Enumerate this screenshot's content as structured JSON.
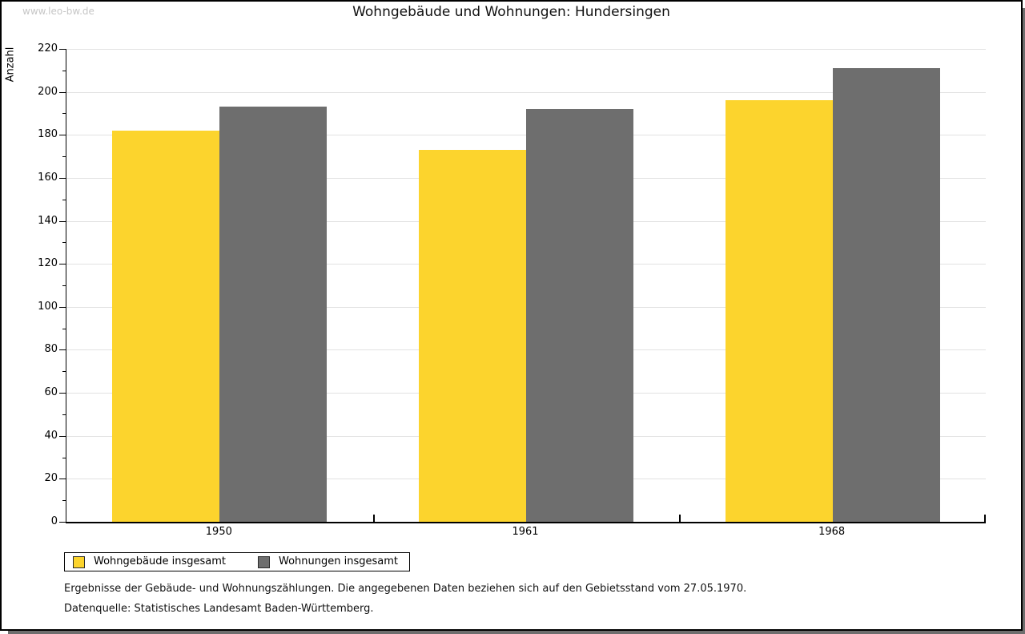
{
  "watermark": "www.leo-bw.de",
  "title": "Wohngebäude und Wohnungen: Hundersingen",
  "chart_data": {
    "type": "bar",
    "title": "Wohngebäude und Wohnungen: Hundersingen",
    "xlabel": "",
    "ylabel": "Anzahl",
    "categories": [
      "1950",
      "1961",
      "1968"
    ],
    "series": [
      {
        "name": "Wohngebäude insgesamt",
        "color": "#fcd42d",
        "values": [
          182,
          173,
          196
        ]
      },
      {
        "name": "Wohnungen insgesamt",
        "color": "#6e6e6e",
        "values": [
          193,
          192,
          211
        ]
      }
    ],
    "ylim": [
      0,
      220
    ],
    "ytick_step": 20,
    "yminor_step": 10,
    "grid": true,
    "legend_position": "bottom-left"
  },
  "footnotes": {
    "line1": "Ergebnisse der Gebäude- und Wohnungszählungen. Die angegebenen Daten beziehen sich auf den Gebietsstand vom 27.05.1970.",
    "line2": "Datenquelle: Statistisches Landesamt Baden-Württemberg."
  },
  "colors": {
    "bar_yellow": "#fcd42d",
    "bar_gray": "#6e6e6e",
    "gridline": "#e2e2e2",
    "axis": "#000000",
    "watermark_text": "#c6c6c6",
    "shadow": "#6e6e6e"
  }
}
